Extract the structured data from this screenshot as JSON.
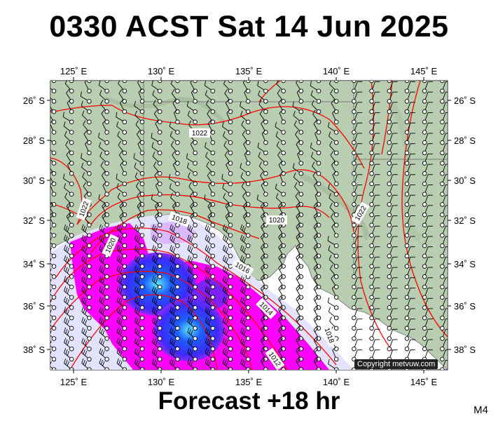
{
  "title": "0330 ACST Sat 14 Jun 2025",
  "footer": "Forecast +18 hr",
  "model_code": "M4",
  "copyright": "Copyright metvuw.com",
  "map": {
    "lon_range": [
      124,
      147
    ],
    "lat_range": [
      -39,
      -25
    ],
    "lon_ticks": [
      "125˚ E",
      "130˚ E",
      "135˚ E",
      "140˚ E",
      "145˚ E"
    ],
    "lat_ticks": [
      "26˚ S",
      "28˚ S",
      "30˚ S",
      "32˚ S",
      "34˚ S",
      "36˚ S",
      "38˚ S"
    ],
    "isobar_labels": [
      "1022",
      "1022",
      "1020",
      "1018",
      "1020",
      "1022",
      "1016",
      "1014",
      "1018",
      "1012"
    ],
    "colors": {
      "isobar": "#ff0000",
      "land": "#b9cdb0",
      "rain_light": "#e3e3ff",
      "rain_magenta": "#ff00ff",
      "rain_blue": "#2a3cff",
      "rain_cyan": "#33ffee"
    }
  }
}
